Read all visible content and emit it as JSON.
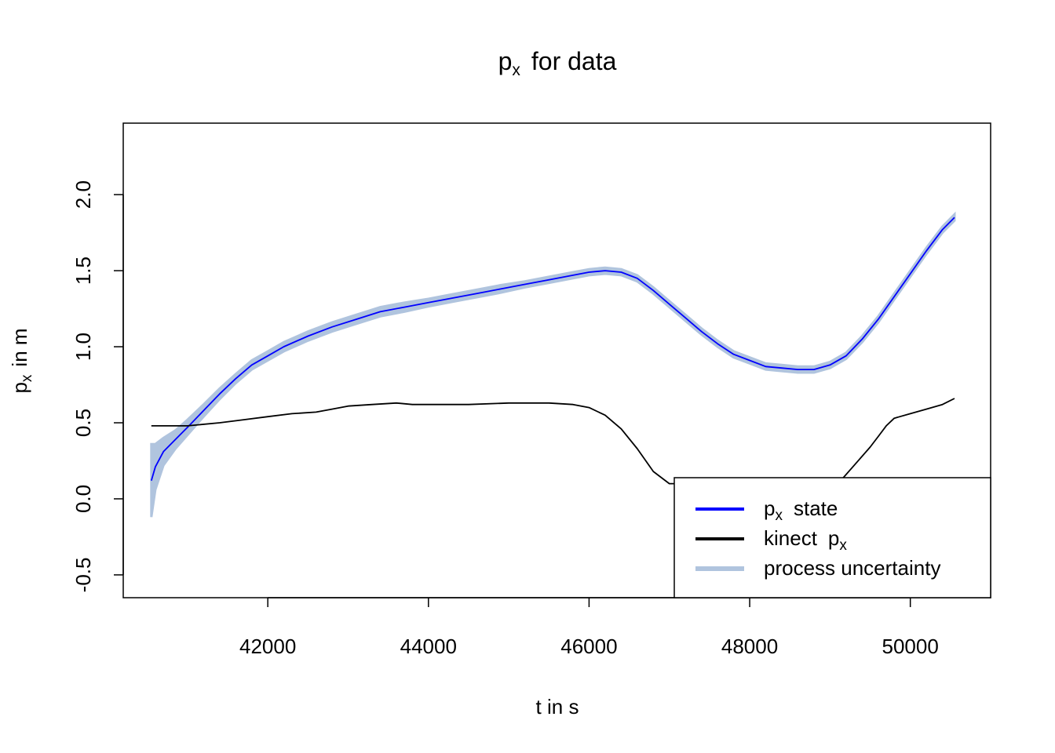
{
  "chart_data": {
    "type": "line",
    "title": {
      "main": "p",
      "sub": "x",
      "rest": "for data"
    },
    "xlabel": "t in s",
    "ylabel": {
      "main": "p",
      "sub": "x",
      "rest": "in m"
    },
    "xlim": [
      40200,
      51000
    ],
    "ylim": [
      -0.65,
      2.47
    ],
    "x_ticks": [
      42000,
      44000,
      46000,
      48000,
      50000
    ],
    "x_tick_labels": [
      "42000",
      "44000",
      "46000",
      "48000",
      "50000"
    ],
    "y_ticks": [
      -0.5,
      0.0,
      0.5,
      1.0,
      1.5,
      2.0
    ],
    "y_tick_labels": [
      "-0.5",
      "0.0",
      "0.5",
      "1.0",
      "1.5",
      "2.0"
    ],
    "grid": false,
    "legend_position": "bottom-right",
    "series": [
      {
        "key": "state",
        "legend": {
          "main": "p",
          "sub": "x",
          "rest": "state"
        },
        "color": "#0000ff",
        "x": [
          40550,
          40600,
          40700,
          40850,
          41000,
          41200,
          41400,
          41600,
          41800,
          42000,
          42200,
          42500,
          42800,
          43100,
          43400,
          43700,
          44000,
          44300,
          44600,
          44900,
          45200,
          45500,
          45800,
          46000,
          46200,
          46400,
          46600,
          46800,
          47000,
          47200,
          47400,
          47600,
          47800,
          48000,
          48200,
          48400,
          48600,
          48800,
          49000,
          49200,
          49400,
          49600,
          49800,
          50000,
          50200,
          50400,
          50550
        ],
        "y": [
          0.12,
          0.21,
          0.31,
          0.39,
          0.47,
          0.58,
          0.69,
          0.79,
          0.88,
          0.94,
          1.0,
          1.07,
          1.13,
          1.18,
          1.23,
          1.26,
          1.29,
          1.32,
          1.35,
          1.38,
          1.41,
          1.44,
          1.47,
          1.49,
          1.5,
          1.49,
          1.45,
          1.37,
          1.28,
          1.19,
          1.1,
          1.02,
          0.95,
          0.91,
          0.87,
          0.86,
          0.85,
          0.85,
          0.88,
          0.94,
          1.05,
          1.18,
          1.33,
          1.48,
          1.63,
          1.77,
          1.85
        ]
      },
      {
        "key": "kinect",
        "legend": {
          "main": "kinect",
          "sub": "x",
          "rest": "p"
        },
        "color": "#000000",
        "x": [
          40550,
          41000,
          41400,
          41700,
          42000,
          42300,
          42600,
          42800,
          43000,
          43300,
          43600,
          43800,
          44000,
          44500,
          45000,
          45500,
          45800,
          46000,
          46200,
          46400,
          46600,
          46800,
          47000,
          48700,
          48900,
          49100,
          49300,
          49500,
          49600,
          49700,
          49800,
          50000,
          50200,
          50400,
          50550
        ],
        "y": [
          0.48,
          0.48,
          0.5,
          0.52,
          0.54,
          0.56,
          0.57,
          0.59,
          0.61,
          0.62,
          0.63,
          0.62,
          0.62,
          0.62,
          0.63,
          0.63,
          0.62,
          0.6,
          0.55,
          0.46,
          0.33,
          0.18,
          0.1,
          0.1,
          0.1,
          0.1,
          0.22,
          0.34,
          0.41,
          0.48,
          0.53,
          0.56,
          0.59,
          0.62,
          0.66
        ]
      }
    ],
    "band": {
      "key": "uncertainty",
      "legend": {
        "main": "process uncertainty"
      },
      "color": "#b0c4de",
      "x": [
        40550,
        40600,
        40700,
        40850,
        41000,
        41200,
        41400,
        41600,
        41800,
        42000,
        42200,
        42500,
        42800,
        43100,
        43400,
        43700,
        44000,
        44300,
        44600,
        44900,
        45200,
        45500,
        45800,
        46000,
        46200,
        46400,
        46600,
        46800,
        47000,
        47200,
        47400,
        47600,
        47800,
        48000,
        48200,
        48400,
        48600,
        48800,
        49000,
        49200,
        49400,
        49600,
        49800,
        50000,
        50200,
        50400,
        50550
      ],
      "half_width": [
        0.24,
        0.15,
        0.09,
        0.06,
        0.05,
        0.04,
        0.035,
        0.03,
        0.03,
        0.03,
        0.03,
        0.03,
        0.03,
        0.03,
        0.03,
        0.03,
        0.025,
        0.025,
        0.025,
        0.025,
        0.02,
        0.02,
        0.02,
        0.02,
        0.02,
        0.02,
        0.02,
        0.02,
        0.02,
        0.02,
        0.02,
        0.02,
        0.02,
        0.02,
        0.02,
        0.02,
        0.02,
        0.02,
        0.02,
        0.02,
        0.02,
        0.02,
        0.02,
        0.02,
        0.02,
        0.02,
        0.02
      ]
    }
  }
}
